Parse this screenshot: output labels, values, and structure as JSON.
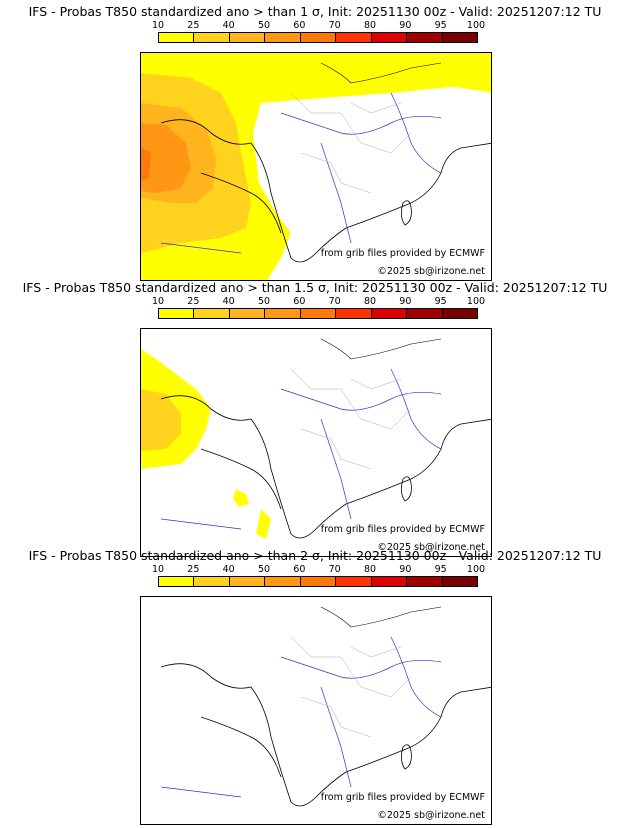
{
  "colorbar": {
    "ticks": [
      "10",
      "25",
      "40",
      "50",
      "60",
      "70",
      "80",
      "90",
      "95",
      "100"
    ],
    "colors": [
      "#ffff00",
      "#ffd21e",
      "#ffb41e",
      "#ff9614",
      "#ff780a",
      "#ff3200",
      "#dc0000",
      "#a00000",
      "#780000"
    ]
  },
  "panels": [
    {
      "title": "IFS - Probas T850  standardized ano > than 1 σ, Init: 20251130 00z - Valid: 20251207:12 TU",
      "threshold_sigma": 1,
      "credit": "from grib files provided by ECMWF",
      "copyright": "©2025 sb@irizone.net"
    },
    {
      "title": "IFS - Probas T850  standardized ano > than 1.5 σ, Init: 20251130 00z - Valid: 20251207:12 TU",
      "threshold_sigma": 1.5,
      "credit": "from grib files provided by ECMWF",
      "copyright": "©2025 sb@irizone.net"
    },
    {
      "title": "IFS - Probas T850  standardized ano > than 2 σ, Init: 20251130 00z - Valid: 20251207:12 TU",
      "threshold_sigma": 2,
      "credit": "from grib files provided by ECMWF",
      "copyright": "©2025 sb@irizone.net"
    }
  ]
}
